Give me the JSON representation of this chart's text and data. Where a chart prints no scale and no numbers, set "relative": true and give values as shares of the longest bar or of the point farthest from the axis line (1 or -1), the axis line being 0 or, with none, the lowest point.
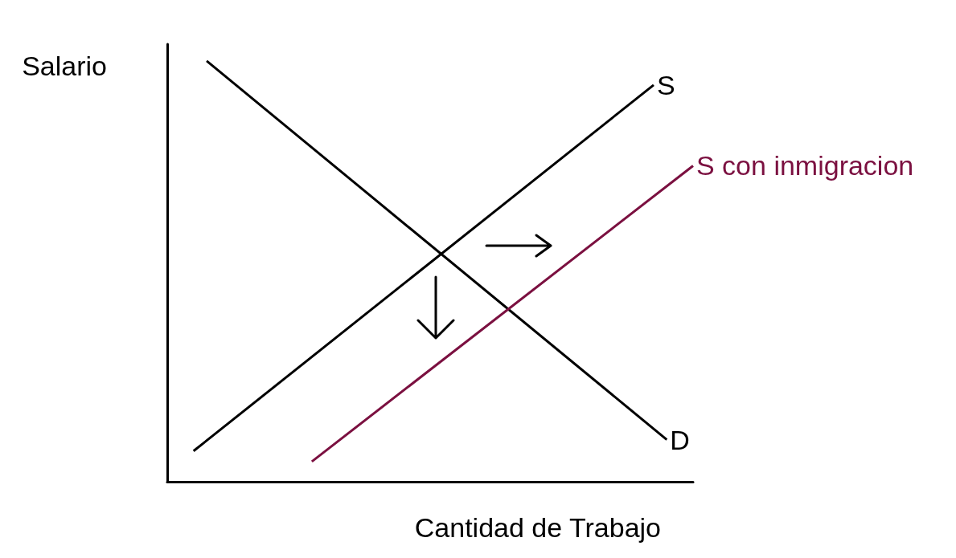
{
  "chart_data": {
    "type": "line",
    "relative": true,
    "xlabel": "Cantidad de Trabajo",
    "ylabel": "Salario",
    "ylim": [
      0,
      1.04
    ],
    "grid": false,
    "legend": false,
    "marker": "none",
    "line_style": "solid",
    "categories": [
      null,
      null,
      null,
      null,
      null,
      null,
      null,
      null,
      null,
      null,
      null,
      null,
      null,
      null,
      null,
      null,
      null,
      null,
      null,
      null,
      null,
      null,
      null,
      null,
      null,
      null,
      null,
      null,
      null,
      null,
      null,
      null,
      null,
      null,
      null,
      null,
      null,
      null,
      null,
      null,
      null
    ],
    "series": [
      {
        "name": "S",
        "color": "#000000",
        "values": [
          null,
          null,
          0.073,
          null,
          null,
          null,
          null,
          null,
          null,
          null,
          null,
          null,
          null,
          null,
          null,
          null,
          null,
          null,
          null,
          null,
          null,
          null,
          null,
          null,
          null,
          null,
          null,
          null,
          null,
          null,
          null,
          null,
          null,
          null,
          null,
          null,
          null,
          0.943,
          null,
          null,
          null
        ]
      },
      {
        "name": "D",
        "color": "#000000",
        "values": [
          null,
          null,
          null,
          1,
          null,
          null,
          null,
          null,
          null,
          null,
          null,
          null,
          null,
          null,
          null,
          null,
          null,
          null,
          null,
          null,
          null,
          null,
          null,
          null,
          null,
          null,
          null,
          null,
          null,
          null,
          null,
          null,
          null,
          null,
          null,
          null,
          null,
          null,
          0.1,
          null,
          null
        ]
      },
      {
        "name": "S con inmigracion",
        "color": "#7b1040",
        "values": [
          null,
          null,
          null,
          null,
          null,
          null,
          null,
          null,
          null,
          null,
          null,
          0.048,
          null,
          null,
          null,
          null,
          null,
          null,
          null,
          null,
          null,
          null,
          null,
          null,
          null,
          null,
          null,
          null,
          null,
          null,
          null,
          null,
          null,
          null,
          null,
          null,
          null,
          null,
          null,
          null,
          0.751
        ]
      }
    ]
  }
}
